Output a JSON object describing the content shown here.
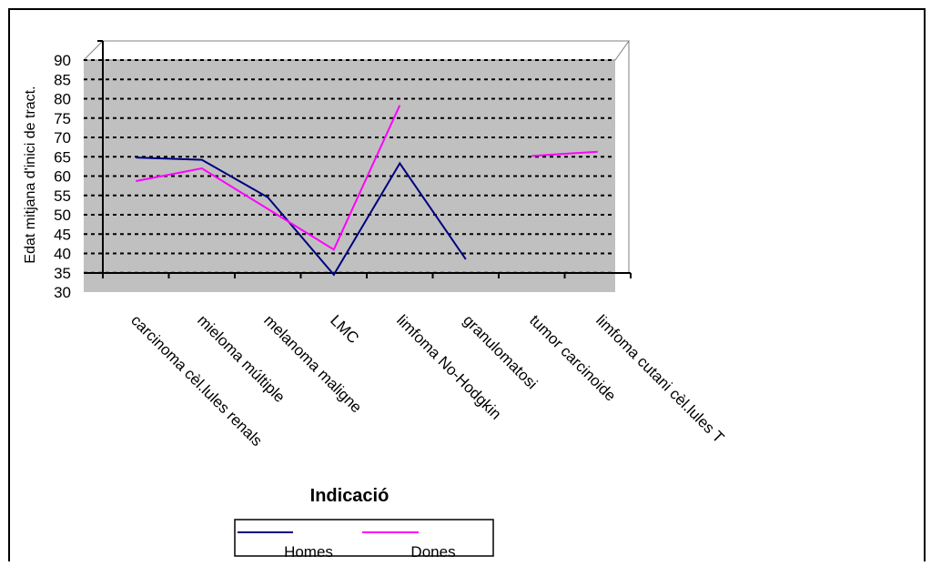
{
  "chart_data": {
    "type": "line",
    "title": "",
    "xlabel": "Indicació",
    "ylabel": "Edat mitjana d'inici de tract.",
    "ylim": [
      30,
      90
    ],
    "yticks": [
      "30",
      "35",
      "40",
      "45",
      "50",
      "55",
      "60",
      "65",
      "70",
      "75",
      "80",
      "85",
      "90"
    ],
    "categories": [
      "carcinoma cèl.lules renals",
      "mieloma múltiple",
      "melanoma maligne",
      "LMC",
      "limfoma No-Hodgkin",
      "granulomatosi",
      "tumor carcinoide",
      "limfoma cutani cèl.lules T"
    ],
    "series": [
      {
        "name": "Homes",
        "color": "#000080",
        "values": [
          64.8,
          64.2,
          54.5,
          34.5,
          63.3,
          38.5,
          null,
          null
        ]
      },
      {
        "name": "Dones",
        "color": "#ff00ff",
        "values": [
          58.7,
          62.0,
          51.5,
          41.0,
          78.3,
          null,
          65.2,
          66.3
        ]
      }
    ],
    "grid": true,
    "legend_position": "bottom",
    "plot_background": "#c0c0c0"
  }
}
